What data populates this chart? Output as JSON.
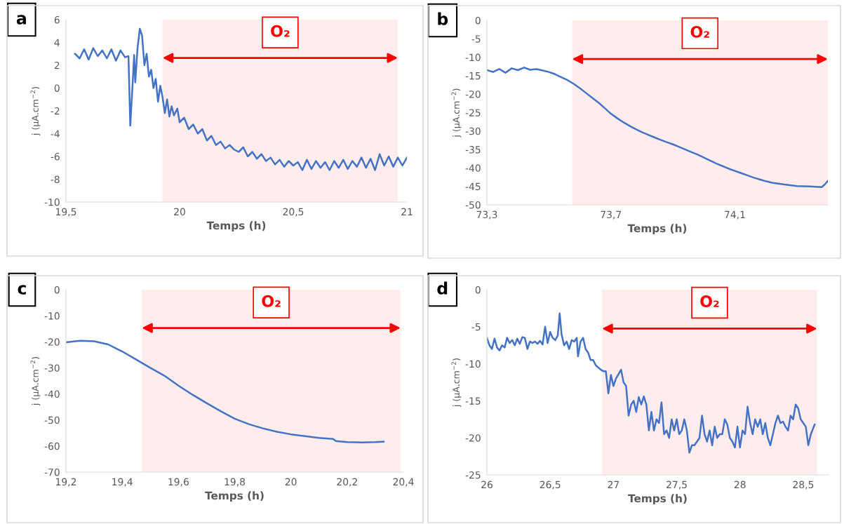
{
  "chart_data": [
    {
      "type": "line",
      "title": "a",
      "xlabel": "Temps (h)",
      "ylabel": "j (µA.cm$^{−2}$)",
      "xlim": [
        19.5,
        21
      ],
      "xticks": [
        {
          "value": 19.5,
          "label": "19,5"
        },
        20,
        {
          "value": 20.5,
          "label": "20,5"
        },
        21
      ],
      "ylim": [
        -10,
        6
      ],
      "yticks": [
        -10,
        -8,
        -6,
        -4,
        -2,
        0,
        2,
        4,
        6
      ],
      "grid": false,
      "bands": [
        {
          "axis": "x",
          "from": 19.925,
          "to": 20.96,
          "label": "O₂",
          "color": "#ff0000"
        }
      ],
      "series": [
        {
          "color": "#4472c4",
          "x": [
            19.54,
            19.56,
            19.58,
            19.6,
            19.62,
            19.64,
            19.66,
            19.68,
            19.7,
            19.72,
            19.74,
            19.76,
            19.775,
            19.783,
            19.795,
            19.8,
            19.805,
            19.815,
            19.825,
            19.835,
            19.845,
            19.855,
            19.865,
            19.875,
            19.885,
            19.895,
            19.905,
            19.915,
            19.925,
            19.935,
            19.945,
            19.955,
            19.965,
            19.975,
            19.99,
            20.0,
            20.02,
            20.04,
            20.06,
            20.08,
            20.1,
            20.12,
            20.14,
            20.16,
            20.18,
            20.2,
            20.22,
            20.24,
            20.26,
            20.28,
            20.3,
            20.32,
            20.34,
            20.36,
            20.38,
            20.4,
            20.42,
            20.44,
            20.46,
            20.48,
            20.5,
            20.52,
            20.54,
            20.56,
            20.58,
            20.6,
            20.62,
            20.64,
            20.66,
            20.68,
            20.7,
            20.72,
            20.74,
            20.76,
            20.78,
            20.8,
            20.82,
            20.84,
            20.86,
            20.88,
            20.9,
            20.92,
            20.94,
            20.96,
            20.98,
            21.0
          ],
          "values": [
            3.0,
            2.6,
            3.4,
            2.5,
            3.5,
            2.8,
            3.3,
            2.6,
            3.4,
            2.4,
            3.3,
            2.7,
            2.8,
            -3.3,
            1.0,
            2.9,
            0.5,
            3.5,
            5.2,
            4.6,
            2.0,
            3.0,
            1.0,
            1.6,
            0.0,
            0.8,
            -1.2,
            0.2,
            -0.8,
            -2.2,
            -1.0,
            -2.5,
            -1.6,
            -2.4,
            -1.8,
            -3.0,
            -2.6,
            -3.6,
            -3.2,
            -4.0,
            -3.6,
            -4.6,
            -4.2,
            -5.0,
            -4.7,
            -5.3,
            -5.0,
            -5.4,
            -5.6,
            -5.2,
            -6.0,
            -5.6,
            -6.2,
            -5.8,
            -6.4,
            -6.1,
            -6.7,
            -6.3,
            -6.9,
            -6.4,
            -6.8,
            -6.5,
            -7.2,
            -6.3,
            -7.1,
            -6.4,
            -7.0,
            -6.5,
            -7.2,
            -6.4,
            -7.0,
            -6.3,
            -7.1,
            -6.4,
            -6.9,
            -6.1,
            -7.0,
            -6.2,
            -7.2,
            -5.8,
            -6.8,
            -6.0,
            -6.9,
            -6.1,
            -6.8,
            -6.1
          ]
        }
      ]
    },
    {
      "type": "line",
      "title": "b",
      "xlabel": "Temps (h)",
      "ylabel": "j (µA.cm$^{−2}$)",
      "xlim": [
        73.3,
        74.4
      ],
      "xticks": [
        {
          "value": 73.3,
          "label": "73,3"
        },
        {
          "value": 73.7,
          "label": "73,7"
        },
        {
          "value": 74.1,
          "label": "74,1"
        }
      ],
      "ylim": [
        -50,
        0
      ],
      "yticks": [
        -50,
        -45,
        -40,
        -35,
        -30,
        -25,
        -20,
        -15,
        -10,
        -5,
        0
      ],
      "grid": false,
      "bands": [
        {
          "axis": "x",
          "from": 73.575,
          "to": 74.4,
          "label": "O₂",
          "color": "#ff0000"
        }
      ],
      "series": [
        {
          "color": "#4472c4",
          "x": [
            73.3,
            73.32,
            73.34,
            73.36,
            73.38,
            73.4,
            73.42,
            73.44,
            73.46,
            73.48,
            73.5,
            73.52,
            73.54,
            73.56,
            73.58,
            73.6,
            73.62,
            73.64,
            73.66,
            73.68,
            73.7,
            73.72,
            73.74,
            73.76,
            73.78,
            73.8,
            73.82,
            73.84,
            73.86,
            73.88,
            73.9,
            73.92,
            73.94,
            73.96,
            73.98,
            74.0,
            74.02,
            74.04,
            74.06,
            74.08,
            74.1,
            74.12,
            74.14,
            74.16,
            74.18,
            74.2,
            74.22,
            74.26,
            74.3,
            74.34,
            74.38,
            74.39,
            74.4
          ],
          "values": [
            -13.5,
            -14,
            -13.2,
            -14.2,
            -13,
            -13.5,
            -12.8,
            -13.4,
            -13.2,
            -13.6,
            -14.0,
            -14.6,
            -15.4,
            -16.2,
            -17.2,
            -18.4,
            -19.7,
            -21.0,
            -22.3,
            -23.8,
            -25.3,
            -26.5,
            -27.6,
            -28.6,
            -29.5,
            -30.3,
            -31.0,
            -31.7,
            -32.4,
            -33.0,
            -33.6,
            -34.3,
            -35.0,
            -35.7,
            -36.4,
            -37.2,
            -38.0,
            -38.8,
            -39.5,
            -40.2,
            -40.8,
            -41.4,
            -42.0,
            -42.6,
            -43.1,
            -43.6,
            -44.0,
            -44.5,
            -44.9,
            -45.0,
            -45.2,
            -44.5,
            -43.5
          ]
        }
      ]
    },
    {
      "type": "line",
      "title": "c",
      "xlabel": "Temps (h)",
      "ylabel": "j (µA.cm$^{−2}$)",
      "xlim": [
        19.2,
        20.4
      ],
      "xticks": [
        {
          "value": 19.2,
          "label": "19,2"
        },
        {
          "value": 19.4,
          "label": "19,4"
        },
        {
          "value": 19.6,
          "label": "19,6"
        },
        {
          "value": 19.8,
          "label": "19,8"
        },
        20,
        {
          "value": 20.2,
          "label": "20,2"
        },
        {
          "value": 20.4,
          "label": "20,4"
        }
      ],
      "ylim": [
        -70,
        0
      ],
      "yticks": [
        -70,
        -60,
        -50,
        -40,
        -30,
        -20,
        -10,
        0
      ],
      "grid": false,
      "bands": [
        {
          "axis": "x",
          "from": 19.47,
          "to": 20.39,
          "label": "O₂",
          "color": "#ff0000"
        }
      ],
      "series": [
        {
          "color": "#4472c4",
          "x": [
            19.2,
            19.25,
            19.3,
            19.35,
            19.4,
            19.45,
            19.5,
            19.55,
            19.6,
            19.65,
            19.7,
            19.75,
            19.8,
            19.85,
            19.9,
            19.95,
            20.0,
            20.05,
            20.1,
            20.15,
            20.16,
            20.2,
            20.25,
            20.3,
            20.33
          ],
          "values": [
            -20.2,
            -19.6,
            -19.8,
            -21,
            -23.7,
            -26.8,
            -30.0,
            -33.0,
            -36.8,
            -40.3,
            -43.5,
            -46.6,
            -49.5,
            -51.6,
            -53.2,
            -54.5,
            -55.5,
            -56.2,
            -56.9,
            -57.3,
            -58.1,
            -58.5,
            -58.6,
            -58.5,
            -58.3
          ]
        }
      ]
    },
    {
      "type": "line",
      "title": "d",
      "xlabel": "Temps (h)",
      "ylabel": "j (µA.cm$^{−2}$)",
      "xlim": [
        26,
        28.7
      ],
      "xticks": [
        26,
        {
          "value": 26.5,
          "label": "26,5"
        },
        27,
        {
          "value": 27.5,
          "label": "27,5"
        },
        28,
        {
          "value": 28.5,
          "label": "28,5"
        }
      ],
      "ylim": [
        -25,
        0
      ],
      "yticks": [
        -25,
        -20,
        -15,
        -10,
        -5,
        0
      ],
      "grid": false,
      "bands": [
        {
          "axis": "x",
          "from": 26.91,
          "to": 28.61,
          "label": "O₂",
          "color": "#ff0000"
        }
      ],
      "series": [
        {
          "color": "#4472c4",
          "x": [
            26.0,
            26.02,
            26.04,
            26.06,
            26.08,
            26.1,
            26.12,
            26.14,
            26.16,
            26.18,
            26.2,
            26.22,
            26.24,
            26.26,
            26.28,
            26.3,
            26.32,
            26.34,
            26.36,
            26.38,
            26.4,
            26.42,
            26.44,
            26.46,
            26.48,
            26.5,
            26.52,
            26.54,
            26.56,
            26.575,
            26.59,
            26.61,
            26.63,
            26.65,
            26.67,
            26.69,
            26.71,
            26.72,
            26.74,
            26.76,
            26.78,
            26.8,
            26.82,
            26.84,
            26.86,
            26.88,
            26.9,
            26.92,
            26.94,
            26.96,
            26.98,
            27.0,
            27.02,
            27.06,
            27.08,
            27.1,
            27.12,
            27.14,
            27.16,
            27.18,
            27.2,
            27.22,
            27.24,
            27.26,
            27.28,
            27.3,
            27.32,
            27.34,
            27.36,
            27.38,
            27.4,
            27.42,
            27.44,
            27.46,
            27.48,
            27.5,
            27.52,
            27.54,
            27.56,
            27.58,
            27.6,
            27.62,
            27.64,
            27.66,
            27.68,
            27.7,
            27.72,
            27.74,
            27.76,
            27.78,
            27.8,
            27.82,
            27.84,
            27.86,
            27.88,
            27.9,
            27.92,
            27.94,
            27.96,
            27.98,
            28.0,
            28.02,
            28.04,
            28.06,
            28.08,
            28.1,
            28.12,
            28.14,
            28.16,
            28.18,
            28.2,
            28.22,
            28.24,
            28.26,
            28.28,
            28.3,
            28.32,
            28.34,
            28.36,
            28.38,
            28.4,
            28.42,
            28.44,
            28.46,
            28.48,
            28.5,
            28.52,
            28.54,
            28.56,
            28.59
          ],
          "values": [
            -6.5,
            -7.5,
            -8.0,
            -6.6,
            -7.8,
            -8.2,
            -7.5,
            -7.8,
            -6.5,
            -7.2,
            -6.8,
            -7.5,
            -6.6,
            -7.3,
            -6.4,
            -6.5,
            -8.0,
            -7.0,
            -7.2,
            -7.0,
            -7.3,
            -6.9,
            -7.4,
            -5.0,
            -7.2,
            -5.7,
            -6.5,
            -6.8,
            -6.2,
            -3.2,
            -6.0,
            -7.5,
            -7.0,
            -8.0,
            -6.8,
            -7.0,
            -6.5,
            -9.0,
            -7.0,
            -6.5,
            -8.0,
            -8.5,
            -9.5,
            -9.5,
            -10.2,
            -10.5,
            -10.8,
            -11.0,
            -11.0,
            -14.0,
            -11.5,
            -13.0,
            -12.0,
            -10.8,
            -12.5,
            -13.0,
            -17.0,
            -15.5,
            -15.0,
            -16.5,
            -14.5,
            -15.5,
            -14.4,
            -15.5,
            -19.0,
            -16.5,
            -19.0,
            -17.5,
            -18.0,
            -15.2,
            -19.5,
            -19.0,
            -20.0,
            -17.5,
            -19.0,
            -17.5,
            -19.5,
            -19.0,
            -17.5,
            -19.0,
            -22.0,
            -21.0,
            -21.0,
            -20.5,
            -20.0,
            -17.0,
            -19.5,
            -20.5,
            -19.0,
            -21.0,
            -18.5,
            -20.0,
            -19.5,
            -19.5,
            -17.5,
            -18.2,
            -20.0,
            -20.5,
            -21.3,
            -18.5,
            -21.3,
            -19.0,
            -19.5,
            -15.8,
            -18.0,
            -19.5,
            -17.5,
            -18.5,
            -17.5,
            -19.5,
            -18.0,
            -20.0,
            -21.0,
            -19.5,
            -18.0,
            -17.0,
            -18.0,
            -17.8,
            -18.5,
            -19.0,
            -17.0,
            -17.5,
            -15.5,
            -16.0,
            -17.5,
            -18.0,
            -18.5,
            -21.0,
            -19.5,
            -18.2
          ]
        }
      ]
    }
  ]
}
